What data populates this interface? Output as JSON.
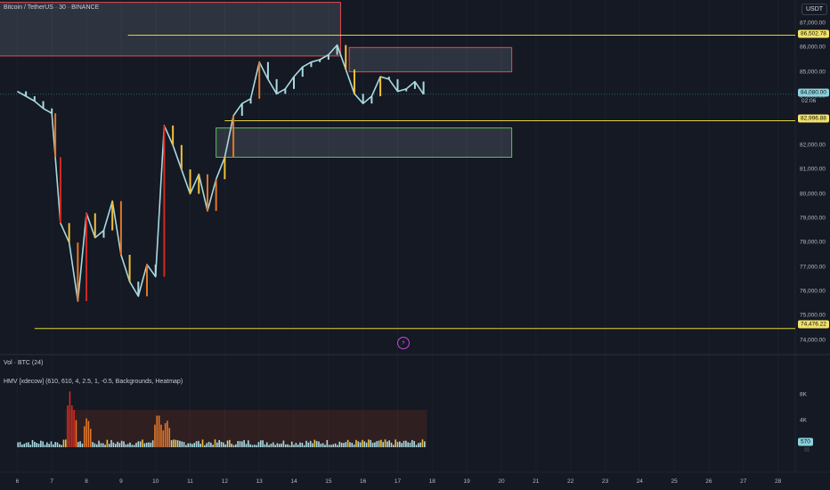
{
  "header": {
    "symbol": "Bitcoin / TetherUS · 30 · BINANCE",
    "currency": "USDT"
  },
  "indicators": {
    "volume_label": "Vol · BTC (24)",
    "heatmap_label": "HMV [xdecow] (610, 610, 4, 2.5, 1, -0.5, Backgrounds, Heatmap)",
    "heatmap_value": "570"
  },
  "price_axis": {
    "labels": [
      "87,000.00",
      "86,000.00",
      "85,000.00",
      "84,000.00",
      "83,000.00",
      "82,000.00",
      "81,000.00",
      "80,000.00",
      "79,000.00",
      "78,000.00",
      "77,000.00",
      "76,000.00",
      "75,000.00",
      "74,000.00"
    ],
    "highlighted": [
      {
        "text": "86,502.78",
        "price": 86502.78
      },
      {
        "text": "82,996.88",
        "price": 82996.88
      },
      {
        "text": "74,476.22",
        "price": 74476.22
      }
    ],
    "current": {
      "text": "84,080.00",
      "price": 84080,
      "countdown": "02:06"
    }
  },
  "volume_axis": {
    "labels": [
      "8K",
      "4K"
    ]
  },
  "time_axis": {
    "labels": [
      "6",
      "7",
      "8",
      "9",
      "10",
      "11",
      "12",
      "13",
      "14",
      "15",
      "16",
      "17",
      "18",
      "19",
      "20",
      "21",
      "22",
      "23",
      "24",
      "25",
      "26",
      "27",
      "28"
    ]
  },
  "colors": {
    "background": "#141923",
    "grid": "#1f2533",
    "level_line": "#e2d23b",
    "supply_zone_border": "#e04b53",
    "demand_zone_border": "#5fbf5a",
    "candle_light": "#a9d9e0",
    "candle_yellow": "#f0bf38",
    "candle_orange": "#e47628",
    "candle_red": "#d42a20"
  },
  "chart_data": {
    "type": "line",
    "x": [
      6,
      6.25,
      6.5,
      6.75,
      7,
      7.1,
      7.25,
      7.5,
      7.75,
      8,
      8.25,
      8.5,
      8.75,
      9,
      9.25,
      9.5,
      9.75,
      10,
      10.25,
      10.5,
      10.75,
      11,
      11.25,
      11.5,
      11.75,
      12,
      12.25,
      12.5,
      12.75,
      13,
      13.25,
      13.5,
      13.75,
      14,
      14.25,
      14.5,
      14.75,
      15,
      15.25,
      15.5,
      15.75,
      16,
      16.25,
      16.5,
      16.75,
      17,
      17.25,
      17.5,
      17.75
    ],
    "close": [
      84200,
      84000,
      83800,
      83500,
      83300,
      81500,
      78800,
      78000,
      75600,
      79200,
      78200,
      78500,
      79700,
      77500,
      76400,
      75800,
      77100,
      76600,
      82800,
      82000,
      81000,
      80000,
      80800,
      79300,
      80600,
      81500,
      83200,
      83700,
      83900,
      85400,
      84700,
      84100,
      84300,
      84800,
      85200,
      85400,
      85500,
      85700,
      86100,
      85100,
      84100,
      83700,
      84000,
      84800,
      84700,
      84200,
      84300,
      84600,
      84080
    ],
    "levels": [
      86502.78,
      82996.88,
      74476.22
    ],
    "zones": [
      {
        "kind": "supply",
        "x_from": 4.9,
        "x_to": 15.35,
        "y_low": 85650,
        "y_high": 87850
      },
      {
        "kind": "supply",
        "x_from": 15.6,
        "x_to": 20.3,
        "y_low": 85000,
        "y_high": 86000
      },
      {
        "kind": "demand",
        "x_from": 11.75,
        "x_to": 20.3,
        "y_low": 81500,
        "y_high": 82700
      }
    ],
    "volume_spikes": [
      {
        "x": 7.5,
        "v": 8500
      },
      {
        "x": 7.6,
        "v": 6200
      },
      {
        "x": 8.0,
        "v": 4800
      },
      {
        "x": 10.05,
        "v": 5500
      },
      {
        "x": 10.3,
        "v": 4400
      }
    ],
    "ylim": [
      73700,
      87800
    ],
    "xlim": [
      5.5,
      28.5
    ],
    "volume_ylim": [
      0,
      9500
    ]
  }
}
